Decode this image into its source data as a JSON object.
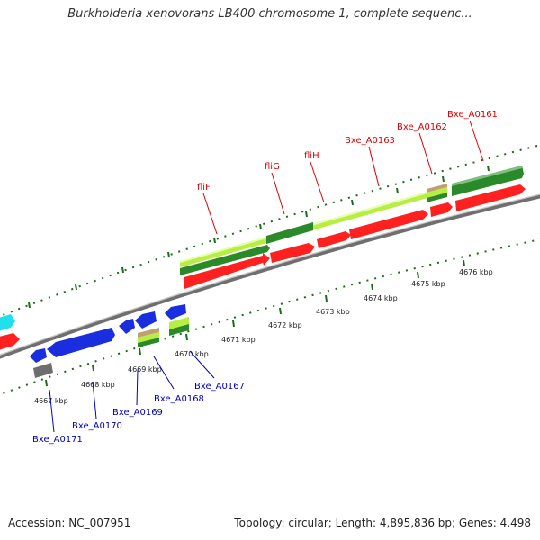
{
  "title": "Burkholderia xenovorans LB400 chromosome 1, complete sequenc...",
  "footer": {
    "accession": "Accession: NC_007951",
    "summary": "Topology: circular; Length: 4,895,836 bp; Genes: 4,498"
  },
  "colors": {
    "upper_label": "#dd0000",
    "lower_label": "#0000bb",
    "backbone": "#7a7a7a",
    "tick": "#1d6b1d",
    "gene_red": "#ff2020",
    "gene_dark_green": "#2a8a2a",
    "gene_light_green": "#b8ee44",
    "gene_blue": "#1a2ee0",
    "gene_gray": "#6e6e6e",
    "gene_cyan": "#20e0ee"
  },
  "upper_labels": [
    "fliF",
    "fliG",
    "fliH",
    "Bxe_A0163",
    "Bxe_A0162",
    "Bxe_A0161"
  ],
  "lower_labels": [
    "Bxe_A0167",
    "Bxe_A0168",
    "Bxe_A0169",
    "Bxe_A0170",
    "Bxe_A0171"
  ],
  "ruler_labels": [
    "4667 kbp",
    "4668 kbp",
    "4669 kbp",
    "4670 kbp",
    "4671 kbp",
    "4672 kbp",
    "4673 kbp",
    "4674 kbp",
    "4675 kbp",
    "4676 kbp"
  ]
}
